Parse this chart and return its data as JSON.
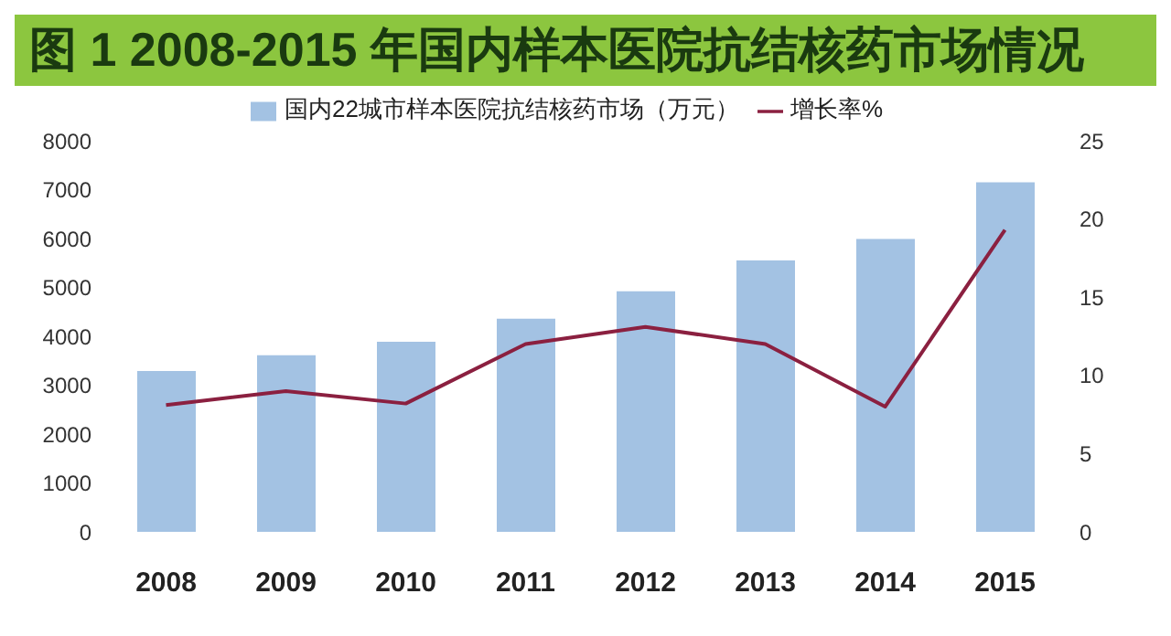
{
  "chart_data": {
    "type": "bar",
    "title": "图 1  2008-2015 年国内样本医院抗结核药市场情况",
    "categories": [
      "2008",
      "2009",
      "2010",
      "2011",
      "2012",
      "2013",
      "2014",
      "2015"
    ],
    "series": [
      {
        "name": "国内22城市样本医院抗结核药市场（万元）",
        "color": "#a3c2e3",
        "values": [
          3290,
          3610,
          3890,
          4360,
          4920,
          5550,
          5990,
          7150
        ]
      },
      {
        "name": "增长率%",
        "type": "line",
        "axis": "y2",
        "color": "#8b2040",
        "values": [
          8.1,
          9.0,
          8.2,
          12.0,
          13.1,
          12.0,
          8.0,
          19.3
        ]
      }
    ],
    "ylim": [
      0,
      8000
    ],
    "yticks": [
      0,
      1000,
      2000,
      3000,
      4000,
      5000,
      6000,
      7000,
      8000
    ],
    "y2lim": [
      0,
      25
    ],
    "y2ticks": [
      0,
      5,
      10,
      15,
      20,
      25
    ],
    "grid": false,
    "legend": "top",
    "marker": "none"
  }
}
